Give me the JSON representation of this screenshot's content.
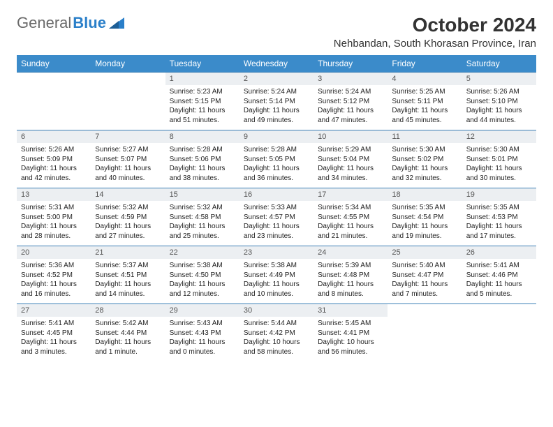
{
  "brand": {
    "part1": "General",
    "part2": "Blue"
  },
  "title": "October 2024",
  "location": "Nehbandan, South Khorasan Province, Iran",
  "colors": {
    "header_bg": "#3b8bca",
    "header_text": "#ffffff",
    "daynum_bg": "#eceff2",
    "row_border": "#3b7fb5",
    "logo_gray": "#6a6a6a",
    "logo_blue": "#2a7fc9"
  },
  "day_labels": [
    "Sunday",
    "Monday",
    "Tuesday",
    "Wednesday",
    "Thursday",
    "Friday",
    "Saturday"
  ],
  "weeks": [
    [
      {
        "n": "",
        "sr": "",
        "ss": "",
        "dl": ""
      },
      {
        "n": "",
        "sr": "",
        "ss": "",
        "dl": ""
      },
      {
        "n": "1",
        "sr": "Sunrise: 5:23 AM",
        "ss": "Sunset: 5:15 PM",
        "dl": "Daylight: 11 hours and 51 minutes."
      },
      {
        "n": "2",
        "sr": "Sunrise: 5:24 AM",
        "ss": "Sunset: 5:14 PM",
        "dl": "Daylight: 11 hours and 49 minutes."
      },
      {
        "n": "3",
        "sr": "Sunrise: 5:24 AM",
        "ss": "Sunset: 5:12 PM",
        "dl": "Daylight: 11 hours and 47 minutes."
      },
      {
        "n": "4",
        "sr": "Sunrise: 5:25 AM",
        "ss": "Sunset: 5:11 PM",
        "dl": "Daylight: 11 hours and 45 minutes."
      },
      {
        "n": "5",
        "sr": "Sunrise: 5:26 AM",
        "ss": "Sunset: 5:10 PM",
        "dl": "Daylight: 11 hours and 44 minutes."
      }
    ],
    [
      {
        "n": "6",
        "sr": "Sunrise: 5:26 AM",
        "ss": "Sunset: 5:09 PM",
        "dl": "Daylight: 11 hours and 42 minutes."
      },
      {
        "n": "7",
        "sr": "Sunrise: 5:27 AM",
        "ss": "Sunset: 5:07 PM",
        "dl": "Daylight: 11 hours and 40 minutes."
      },
      {
        "n": "8",
        "sr": "Sunrise: 5:28 AM",
        "ss": "Sunset: 5:06 PM",
        "dl": "Daylight: 11 hours and 38 minutes."
      },
      {
        "n": "9",
        "sr": "Sunrise: 5:28 AM",
        "ss": "Sunset: 5:05 PM",
        "dl": "Daylight: 11 hours and 36 minutes."
      },
      {
        "n": "10",
        "sr": "Sunrise: 5:29 AM",
        "ss": "Sunset: 5:04 PM",
        "dl": "Daylight: 11 hours and 34 minutes."
      },
      {
        "n": "11",
        "sr": "Sunrise: 5:30 AM",
        "ss": "Sunset: 5:02 PM",
        "dl": "Daylight: 11 hours and 32 minutes."
      },
      {
        "n": "12",
        "sr": "Sunrise: 5:30 AM",
        "ss": "Sunset: 5:01 PM",
        "dl": "Daylight: 11 hours and 30 minutes."
      }
    ],
    [
      {
        "n": "13",
        "sr": "Sunrise: 5:31 AM",
        "ss": "Sunset: 5:00 PM",
        "dl": "Daylight: 11 hours and 28 minutes."
      },
      {
        "n": "14",
        "sr": "Sunrise: 5:32 AM",
        "ss": "Sunset: 4:59 PM",
        "dl": "Daylight: 11 hours and 27 minutes."
      },
      {
        "n": "15",
        "sr": "Sunrise: 5:32 AM",
        "ss": "Sunset: 4:58 PM",
        "dl": "Daylight: 11 hours and 25 minutes."
      },
      {
        "n": "16",
        "sr": "Sunrise: 5:33 AM",
        "ss": "Sunset: 4:57 PM",
        "dl": "Daylight: 11 hours and 23 minutes."
      },
      {
        "n": "17",
        "sr": "Sunrise: 5:34 AM",
        "ss": "Sunset: 4:55 PM",
        "dl": "Daylight: 11 hours and 21 minutes."
      },
      {
        "n": "18",
        "sr": "Sunrise: 5:35 AM",
        "ss": "Sunset: 4:54 PM",
        "dl": "Daylight: 11 hours and 19 minutes."
      },
      {
        "n": "19",
        "sr": "Sunrise: 5:35 AM",
        "ss": "Sunset: 4:53 PM",
        "dl": "Daylight: 11 hours and 17 minutes."
      }
    ],
    [
      {
        "n": "20",
        "sr": "Sunrise: 5:36 AM",
        "ss": "Sunset: 4:52 PM",
        "dl": "Daylight: 11 hours and 16 minutes."
      },
      {
        "n": "21",
        "sr": "Sunrise: 5:37 AM",
        "ss": "Sunset: 4:51 PM",
        "dl": "Daylight: 11 hours and 14 minutes."
      },
      {
        "n": "22",
        "sr": "Sunrise: 5:38 AM",
        "ss": "Sunset: 4:50 PM",
        "dl": "Daylight: 11 hours and 12 minutes."
      },
      {
        "n": "23",
        "sr": "Sunrise: 5:38 AM",
        "ss": "Sunset: 4:49 PM",
        "dl": "Daylight: 11 hours and 10 minutes."
      },
      {
        "n": "24",
        "sr": "Sunrise: 5:39 AM",
        "ss": "Sunset: 4:48 PM",
        "dl": "Daylight: 11 hours and 8 minutes."
      },
      {
        "n": "25",
        "sr": "Sunrise: 5:40 AM",
        "ss": "Sunset: 4:47 PM",
        "dl": "Daylight: 11 hours and 7 minutes."
      },
      {
        "n": "26",
        "sr": "Sunrise: 5:41 AM",
        "ss": "Sunset: 4:46 PM",
        "dl": "Daylight: 11 hours and 5 minutes."
      }
    ],
    [
      {
        "n": "27",
        "sr": "Sunrise: 5:41 AM",
        "ss": "Sunset: 4:45 PM",
        "dl": "Daylight: 11 hours and 3 minutes."
      },
      {
        "n": "28",
        "sr": "Sunrise: 5:42 AM",
        "ss": "Sunset: 4:44 PM",
        "dl": "Daylight: 11 hours and 1 minute."
      },
      {
        "n": "29",
        "sr": "Sunrise: 5:43 AM",
        "ss": "Sunset: 4:43 PM",
        "dl": "Daylight: 11 hours and 0 minutes."
      },
      {
        "n": "30",
        "sr": "Sunrise: 5:44 AM",
        "ss": "Sunset: 4:42 PM",
        "dl": "Daylight: 10 hours and 58 minutes."
      },
      {
        "n": "31",
        "sr": "Sunrise: 5:45 AM",
        "ss": "Sunset: 4:41 PM",
        "dl": "Daylight: 10 hours and 56 minutes."
      },
      {
        "n": "",
        "sr": "",
        "ss": "",
        "dl": ""
      },
      {
        "n": "",
        "sr": "",
        "ss": "",
        "dl": ""
      }
    ]
  ]
}
